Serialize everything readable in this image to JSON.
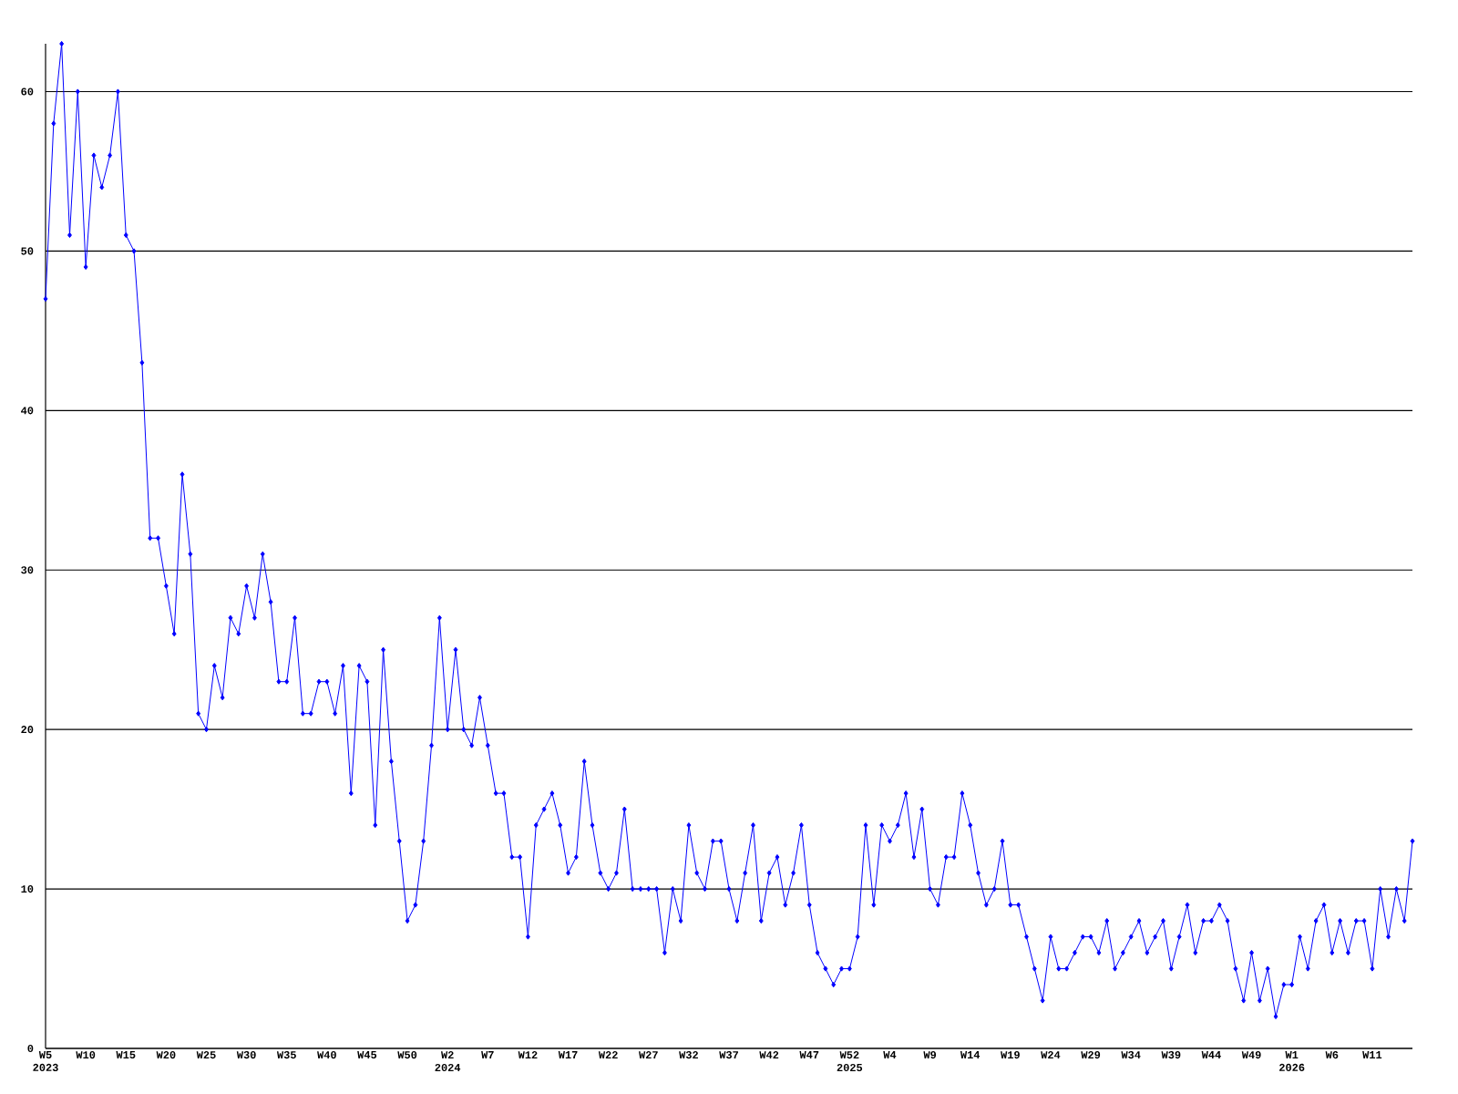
{
  "chart_data": {
    "type": "line",
    "color": "#0000ff",
    "marker": "diamond",
    "grid": "y",
    "categories": [
      "W5 2023",
      null,
      null,
      null,
      null,
      "W10",
      null,
      null,
      null,
      null,
      "W15",
      null,
      null,
      null,
      null,
      "W20",
      null,
      null,
      null,
      null,
      "W25",
      null,
      null,
      null,
      null,
      "W30",
      null,
      null,
      null,
      null,
      "W35",
      null,
      null,
      null,
      null,
      "W40",
      null,
      null,
      null,
      null,
      "W45",
      null,
      null,
      null,
      null,
      "W50",
      null,
      null,
      null,
      null,
      "W2 2024",
      null,
      null,
      null,
      null,
      "W7",
      null,
      null,
      null,
      null,
      "W12",
      null,
      null,
      null,
      null,
      "W17",
      null,
      null,
      null,
      null,
      "W22",
      null,
      null,
      null,
      null,
      "W27",
      null,
      null,
      null,
      null,
      "W32",
      null,
      null,
      null,
      null,
      "W37",
      null,
      null,
      null,
      null,
      "W42",
      null,
      null,
      null,
      null,
      "W47",
      null,
      null,
      null,
      null,
      "W52 2025",
      null,
      null,
      null,
      null,
      "W4",
      null,
      null,
      null,
      null,
      "W9",
      null,
      null,
      null,
      null,
      "W14",
      null,
      null,
      null,
      null,
      "W19",
      null,
      null,
      null,
      null,
      "W24",
      null,
      null,
      null,
      null,
      "W29",
      null,
      null,
      null,
      null,
      "W34",
      null,
      null,
      null,
      null,
      "W39",
      null,
      null,
      null,
      null,
      "W44",
      null,
      null,
      null,
      null,
      "W49",
      null,
      null,
      null,
      null,
      "W1 2026",
      null,
      null,
      null,
      null,
      "W6",
      null,
      null,
      null,
      null,
      "W11",
      null,
      null,
      null,
      null,
      null
    ],
    "values": [
      47,
      58,
      63,
      51,
      60,
      49,
      56,
      54,
      56,
      60,
      51,
      50,
      43,
      32,
      32,
      29,
      26,
      36,
      31,
      21,
      20,
      24,
      22,
      27,
      26,
      29,
      27,
      31,
      28,
      23,
      23,
      27,
      21,
      21,
      23,
      23,
      21,
      24,
      16,
      24,
      23,
      14,
      25,
      18,
      13,
      8,
      9,
      13,
      19,
      27,
      20,
      25,
      20,
      19,
      22,
      19,
      16,
      16,
      12,
      12,
      7,
      14,
      15,
      16,
      14,
      11,
      12,
      18,
      14,
      11,
      10,
      11,
      15,
      10,
      10,
      10,
      10,
      6,
      10,
      8,
      14,
      11,
      10,
      13,
      13,
      10,
      8,
      11,
      14,
      8,
      11,
      12,
      9,
      11,
      14,
      9,
      6,
      5,
      4,
      5,
      5,
      7,
      14,
      9,
      14,
      13,
      14,
      16,
      12,
      15,
      10,
      9,
      12,
      12,
      16,
      14,
      11,
      9,
      10,
      13,
      9,
      9,
      7,
      5,
      3,
      7,
      5,
      5,
      6,
      7,
      7,
      6,
      8,
      5,
      6,
      7,
      8,
      6,
      7,
      8,
      5,
      7,
      9,
      6,
      8,
      8,
      9,
      8,
      5,
      3,
      6,
      3,
      5,
      2,
      4,
      4,
      7,
      5,
      8,
      9,
      6,
      8,
      6,
      8,
      8,
      5,
      10,
      7,
      10,
      8,
      13
    ],
    "ylim": [
      0,
      63
    ],
    "yticks": [
      0,
      10,
      20,
      30,
      40,
      50,
      60
    ]
  }
}
